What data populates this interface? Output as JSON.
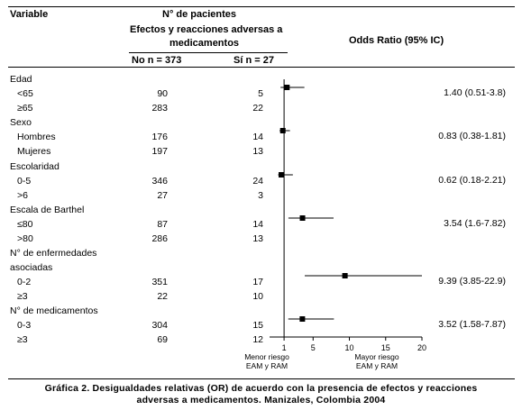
{
  "headers": {
    "variable": "Variable",
    "patients": "N° de pacientes",
    "adverse_line1": "Efectos y reacciones adversas a",
    "adverse_line2": "medicamentos",
    "no_col": "No  n = 373",
    "si_col": "Sí  n = 27",
    "odds": "Odds Ratio (95% IC)"
  },
  "groups": [
    {
      "label": "Edad",
      "rows": [
        {
          "label": "<65",
          "no": "90",
          "si": "5"
        },
        {
          "label": "≥65",
          "no": "283",
          "si": "22"
        }
      ]
    },
    {
      "label": "Sexo",
      "rows": [
        {
          "label": "Hombres",
          "no": "176",
          "si": "14"
        },
        {
          "label": "Mujeres",
          "no": "197",
          "si": "13"
        }
      ]
    },
    {
      "label": "Escolaridad",
      "rows": [
        {
          "label": "0-5",
          "no": "346",
          "si": "24"
        },
        {
          "label": ">6",
          "no": "27",
          "si": "3"
        }
      ]
    },
    {
      "label": "Escala de Barthel",
      "rows": [
        {
          "label": "≤80",
          "no": "87",
          "si": "14"
        },
        {
          "label": ">80",
          "no": "286",
          "si": "13"
        }
      ]
    },
    {
      "label": "N° de enfermedades",
      "label2": "asociadas",
      "rows": [
        {
          "label": "0-2",
          "no": "351",
          "si": "17"
        },
        {
          "label": "≥3",
          "no": "22",
          "si": "10"
        }
      ]
    },
    {
      "label": "N° de medicamentos",
      "rows": [
        {
          "label": "0-3",
          "no": "304",
          "si": "15"
        },
        {
          "label": "≥3",
          "no": "69",
          "si": "12"
        }
      ]
    }
  ],
  "chart_data": {
    "type": "scatter",
    "subtype": "forest-plot",
    "categories": [
      "Edad",
      "Sexo",
      "Escolaridad",
      "Escala de Barthel",
      "N° de enfermedades asociadas",
      "N° de medicamentos"
    ],
    "series": [
      {
        "values": [
          1.4,
          0.83,
          0.62,
          3.54,
          9.39,
          3.52
        ],
        "lower": [
          0.51,
          0.38,
          0.18,
          1.6,
          3.85,
          1.58
        ],
        "upper": [
          3.8,
          1.81,
          2.21,
          7.82,
          22.9,
          7.87
        ],
        "labels": [
          "1.40 (0.51-3.8)",
          "0.83 (0.38-1.81)",
          "0.62 (0.18-2.21)",
          "3.54 (1.6-7.82)",
          "9.39 (3.85-22.9)",
          "3.52 (1.58-7.87)"
        ]
      }
    ],
    "x_ticks": [
      "1",
      "5",
      "10",
      "15",
      "20"
    ],
    "x_tick_values": [
      1,
      5,
      10,
      15,
      20
    ],
    "xlim": [
      -1,
      20
    ],
    "x_label_left": [
      "Menor riesgo",
      "EAM y RAM"
    ],
    "x_label_right": [
      "Mayor riesgo",
      "EAM y RAM"
    ],
    "grid": false,
    "reference_line": 1
  },
  "caption": {
    "line1": "Gráfica 2. Desigualdades relativas (OR) de acuerdo con la presencia de efectos y reacciones",
    "line2": "adversas a medicamentos. Manizales, Colombia 2004"
  }
}
